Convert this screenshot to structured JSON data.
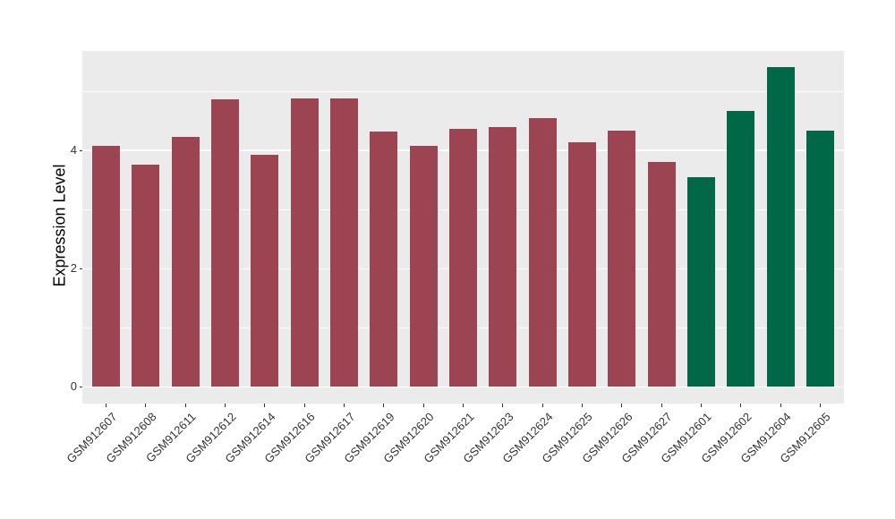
{
  "chart_data": {
    "type": "bar",
    "title": "",
    "ylabel": "Expression Level",
    "xlabel": "",
    "categories": [
      "GSM912607",
      "GSM912608",
      "GSM912611",
      "GSM912612",
      "GSM912614",
      "GSM912616",
      "GSM912617",
      "GSM912619",
      "GSM912620",
      "GSM912621",
      "GSM912623",
      "GSM912624",
      "GSM912625",
      "GSM912626",
      "GSM912627",
      "GSM912601",
      "GSM912602",
      "GSM912604",
      "GSM912605"
    ],
    "values": [
      4.08,
      3.76,
      4.23,
      4.86,
      3.92,
      4.88,
      4.88,
      4.32,
      4.08,
      4.36,
      4.39,
      4.54,
      4.14,
      4.33,
      3.8,
      3.54,
      4.67,
      5.41,
      4.34
    ],
    "bar_group_index": [
      0,
      0,
      0,
      0,
      0,
      0,
      0,
      0,
      0,
      0,
      0,
      0,
      0,
      0,
      0,
      1,
      1,
      1,
      1
    ],
    "group_colors": [
      "#9D4452",
      "#006747"
    ],
    "yticks": [
      0,
      2,
      4
    ],
    "yticks_minor": [
      1,
      3,
      5
    ],
    "ylim": [
      -0.28,
      5.68
    ],
    "bar_width_ratio": 0.7,
    "grid": true,
    "legend": false,
    "panel_background": "#EBEBEB",
    "grid_color": "#FFFFFF"
  }
}
